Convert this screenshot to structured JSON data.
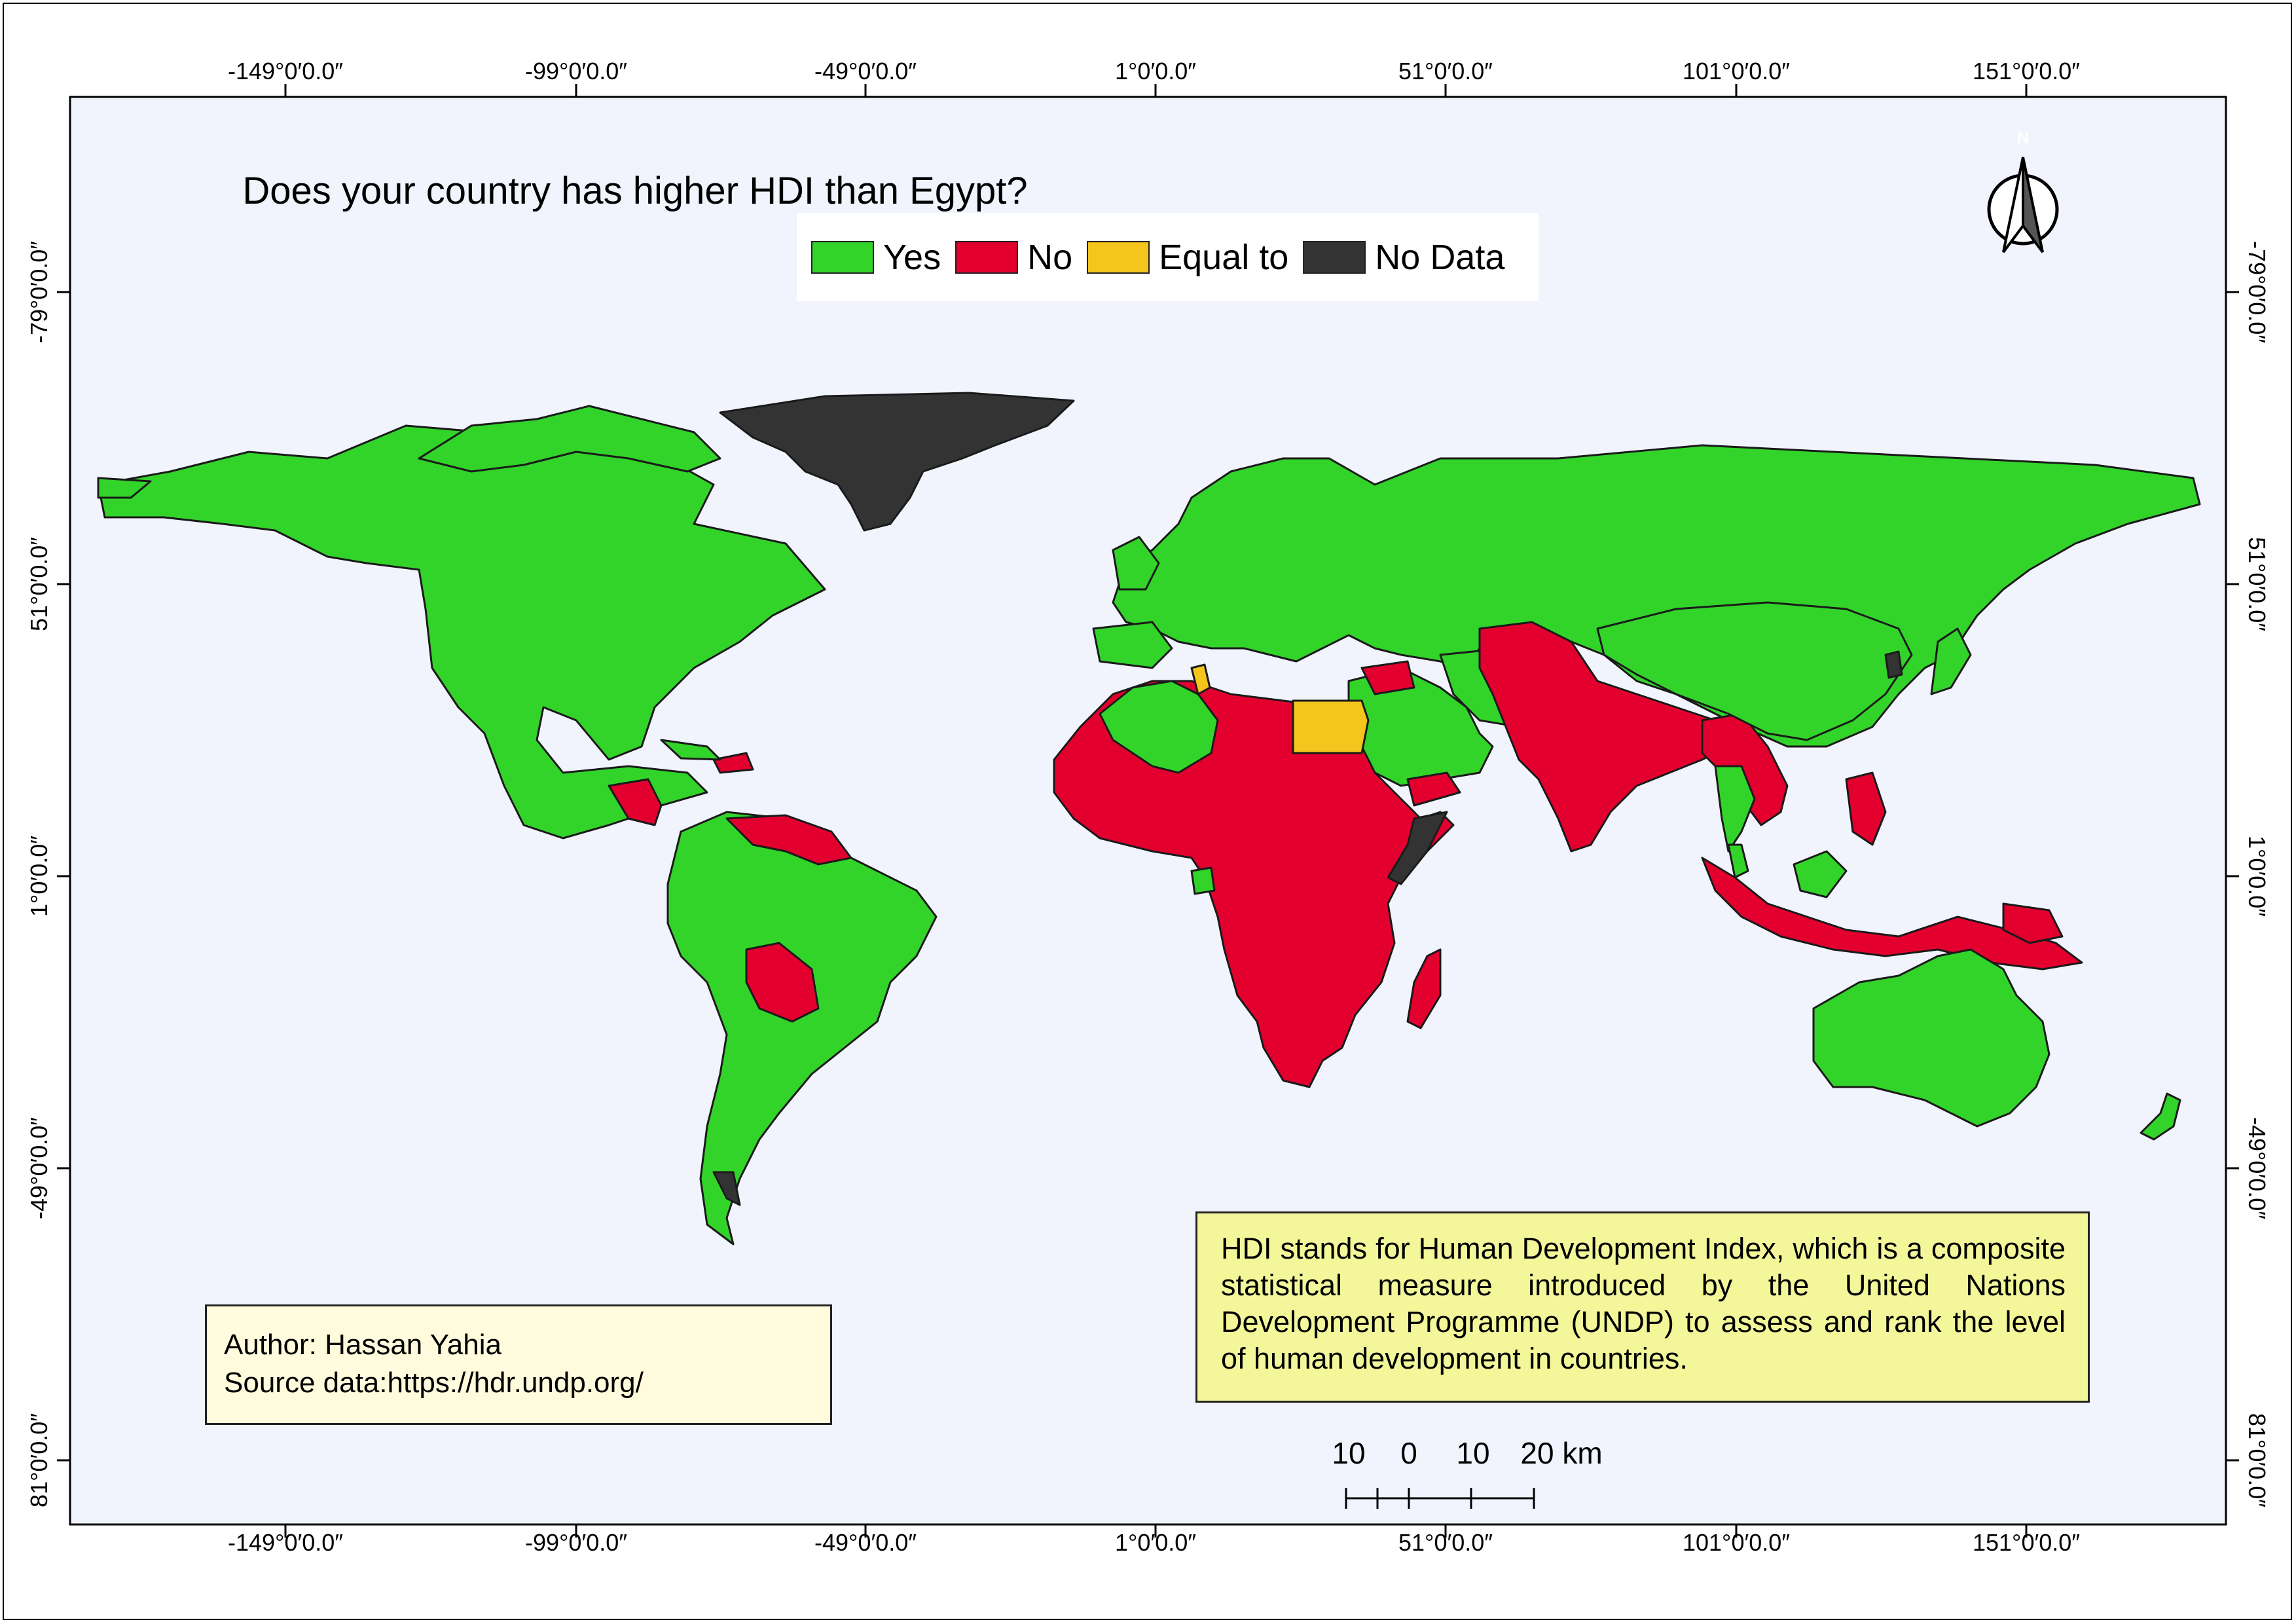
{
  "map": {
    "title": "Does your country has higher HDI than Egypt?",
    "legend": [
      {
        "label": "Yes",
        "color": "#32d42a"
      },
      {
        "label": "No",
        "color": "#e3002f"
      },
      {
        "label": "Equal to",
        "color": "#f4c51c"
      },
      {
        "label": "No Data",
        "color": "#333333"
      }
    ],
    "colors": {
      "ocean": "#f1f4fd",
      "yes": "#32d42a",
      "no": "#e3002f",
      "equal": "#f4c51c",
      "nodata": "#333333",
      "border": "#1a1a1a"
    },
    "graticule": {
      "top": [
        "-149°0′0.0″",
        "-99°0′0.0″",
        "-49°0′0.0″",
        "1°0′0.0″",
        "51°0′0.0″",
        "101°0′0.0″",
        "151°0′0.0″"
      ],
      "bottom": [
        "-149°0′0.0″",
        "-99°0′0.0″",
        "-49°0′0.0″",
        "1°0′0.0″",
        "51°0′0.0″",
        "101°0′0.0″",
        "151°0′0.0″"
      ],
      "left": [
        "-79°0′0.0″",
        "51°0′0.0″",
        "1°0′0.0″",
        "-49°0′0.0″",
        "81°0′0.0″"
      ],
      "right": [
        "-79°0′0.0″",
        "51°0′0.0″",
        "1°0′0.0″",
        "-49°0′0.0″",
        "81°0′0.0″"
      ]
    },
    "north_arrow": {
      "label": "N",
      "icon": "north-arrow-icon"
    },
    "scale_bar": {
      "labels": [
        "10",
        "0",
        "10",
        "20 km"
      ]
    },
    "author_box": {
      "author": "Author: Hassan Yahia",
      "source": "Source data:https://hdr.undp.org/"
    },
    "hdi_note": "HDI stands for Human Development Index, which is a composite statistical measure introduced by the United Nations Development Programme (UNDP) to assess and rank the level of human development in countries."
  }
}
